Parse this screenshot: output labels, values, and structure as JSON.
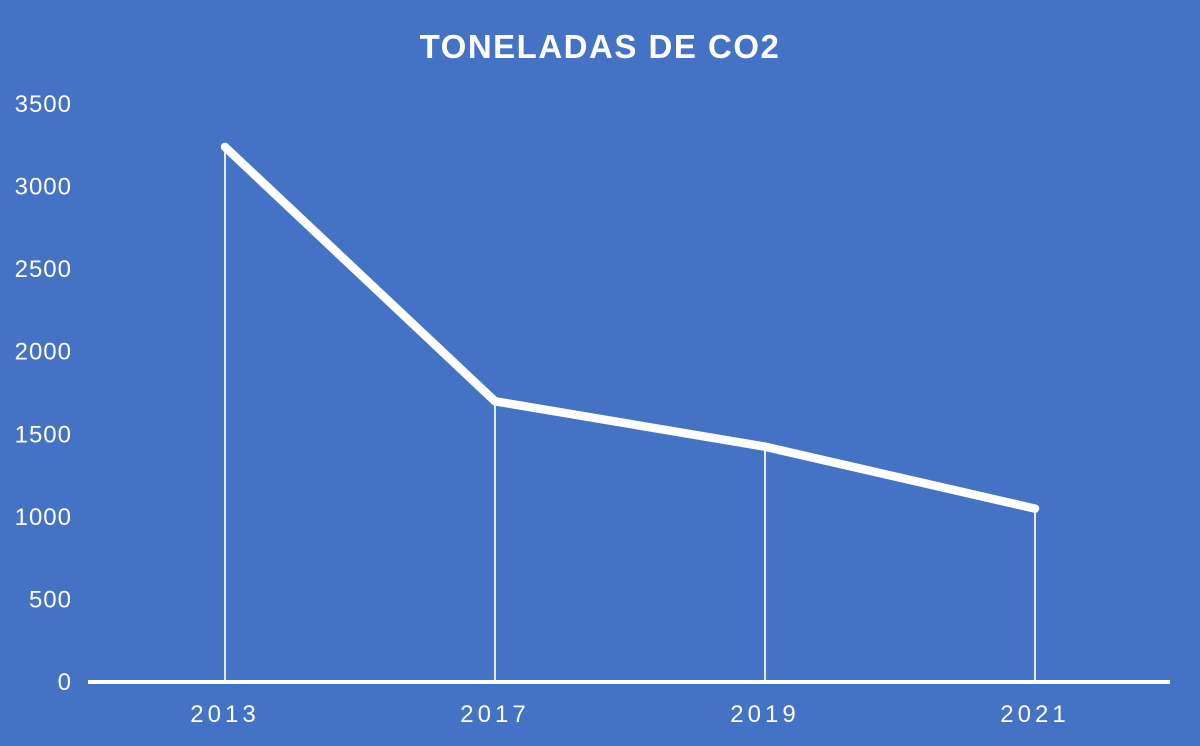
{
  "page": {
    "background_color": "#4472C4",
    "text_color": "#FFFFFF"
  },
  "chart_data": {
    "type": "line",
    "title": "TONELADAS DE CO2",
    "categories": [
      "2013",
      "2017",
      "2019",
      "2021"
    ],
    "values": [
      3240,
      1700,
      1425,
      1050
    ],
    "xlabel": "",
    "ylabel": "",
    "ylim": [
      0,
      3500
    ],
    "yticks": [
      0,
      500,
      1000,
      1500,
      2000,
      2500,
      3000,
      3500
    ],
    "grid": false,
    "legend": false,
    "line_color": "#FFFFFF",
    "axis_color": "#FFFFFF",
    "drop_lines": true
  }
}
